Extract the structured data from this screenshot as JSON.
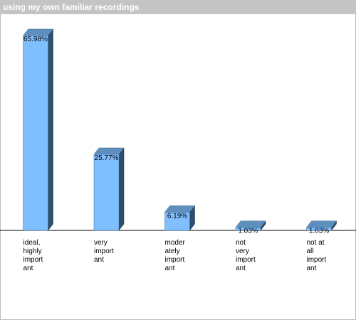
{
  "chart_data": {
    "type": "bar",
    "title": "using my own familiar recordings",
    "categories": [
      "ideal,\nhighly\nimport\nant",
      "very\nimport\nant",
      "moder\nately\nimport\nant",
      "not\nvery\nimport\nant",
      "not at\nall\nimport\nant"
    ],
    "values": [
      65.98,
      25.77,
      6.19,
      1.03,
      1.03
    ],
    "value_labels": [
      "65.98%",
      "25.77%",
      "6.19%",
      "1.03%",
      "1.03%"
    ],
    "color": "#80bfff"
  }
}
